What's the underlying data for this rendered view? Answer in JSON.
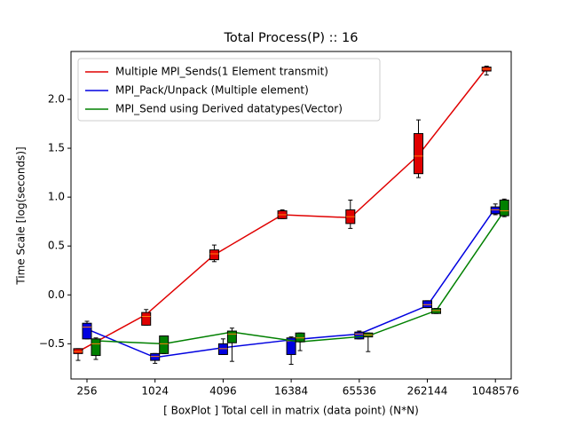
{
  "chart_data": {
    "type": "boxline",
    "title": "Total Process(P) :: 16",
    "x_label": "[ BoxPlot ] Total cell in matrix (data point) (N*N)",
    "y_label": "Time Scale [log(seconds)]",
    "categories": [
      "256",
      "1024",
      "4096",
      "16384",
      "65536",
      "262144",
      "1048576"
    ],
    "ylim": [
      -0.86,
      2.49
    ],
    "yticks": [
      {
        "value": -0.5,
        "label": "−0.5"
      },
      {
        "value": 0,
        "label": "0.0"
      },
      0.5,
      {
        "value": 1,
        "label": "1.0"
      },
      1.5,
      {
        "value": 2,
        "label": "2.0"
      }
    ],
    "legend": "upper left",
    "median_color": "#ff7f0e",
    "series": [
      {
        "name": "Multiple MPI_Sends(1 Element transmit)",
        "color": "#e00000",
        "values": [
          -0.58,
          -0.2,
          0.41,
          0.82,
          0.79,
          1.43,
          2.32
        ],
        "boxes": {
          "low": [
            -0.67,
            -0.31,
            0.34,
            0.78,
            0.68,
            1.2,
            2.25
          ],
          "q1": [
            -0.6,
            -0.31,
            0.36,
            0.78,
            0.73,
            1.24,
            2.29
          ],
          "median": [
            -0.58,
            -0.22,
            0.42,
            0.82,
            0.8,
            1.42,
            2.31
          ],
          "q3": [
            -0.55,
            -0.18,
            0.46,
            0.86,
            0.87,
            1.65,
            2.33
          ],
          "high": [
            -0.55,
            -0.15,
            0.51,
            0.87,
            0.97,
            1.79,
            2.34
          ]
        }
      },
      {
        "name": "MPI_Pack/Unpack (Multiple element)",
        "color": "#0000e0",
        "values": [
          -0.35,
          -0.64,
          -0.54,
          -0.46,
          -0.4,
          -0.11,
          0.89
        ],
        "boxes": {
          "low": [
            -0.45,
            -0.7,
            -0.61,
            -0.71,
            -0.45,
            -0.13,
            0.82
          ],
          "q1": [
            -0.45,
            -0.67,
            -0.61,
            -0.61,
            -0.45,
            -0.13,
            0.83
          ],
          "median": [
            -0.33,
            -0.63,
            -0.55,
            -0.47,
            -0.4,
            -0.1,
            0.87
          ],
          "q3": [
            -0.29,
            -0.6,
            -0.5,
            -0.44,
            -0.38,
            -0.06,
            0.9
          ],
          "high": [
            -0.27,
            -0.6,
            -0.45,
            -0.43,
            -0.37,
            -0.06,
            0.93
          ]
        }
      },
      {
        "name": "MPI_Send using Derived datatypes(Vector)",
        "color": "#008000",
        "values": [
          -0.47,
          -0.5,
          -0.38,
          -0.48,
          -0.42,
          -0.16,
          0.86
        ],
        "boxes": {
          "low": [
            -0.66,
            -0.6,
            -0.68,
            -0.57,
            -0.58,
            -0.19,
            0.8
          ],
          "q1": [
            -0.62,
            -0.6,
            -0.49,
            -0.48,
            -0.43,
            -0.19,
            0.81
          ],
          "median": [
            -0.5,
            -0.5,
            -0.4,
            -0.44,
            -0.41,
            -0.16,
            0.86
          ],
          "q3": [
            -0.45,
            -0.42,
            -0.37,
            -0.39,
            -0.39,
            -0.14,
            0.97
          ],
          "high": [
            -0.44,
            -0.42,
            -0.34,
            -0.39,
            -0.39,
            -0.14,
            0.98
          ]
        }
      }
    ]
  }
}
